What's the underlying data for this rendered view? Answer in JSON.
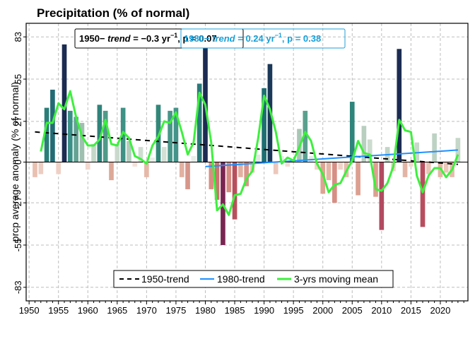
{
  "chart_data": {
    "type": "bar",
    "title": "Precipitation  (% of normal)",
    "ylabel": "prcp average anomaly (% of normal)",
    "xlabel": "",
    "xlim": [
      1949.5,
      2024.7
    ],
    "ylim": [
      -92,
      92
    ],
    "xticks": [
      1950,
      1955,
      1960,
      1965,
      1970,
      1975,
      1980,
      1985,
      1990,
      1995,
      2000,
      2005,
      2010,
      2015,
      2020
    ],
    "xtick_labels": [
      "1950",
      "1955",
      "1960",
      "1965",
      "1970",
      "1975",
      "1980",
      "1985",
      "1990",
      "1995",
      "2000",
      "2005",
      "2010",
      "2015",
      "2020"
    ],
    "yticks": [
      -83,
      -55,
      -27,
      0,
      27,
      55,
      83
    ],
    "ytick_labels": [
      "-83",
      "-55",
      "-27",
      "0",
      "27",
      "55",
      "83"
    ],
    "grid": true,
    "years": [
      1951,
      1952,
      1953,
      1954,
      1955,
      1956,
      1957,
      1958,
      1959,
      1960,
      1961,
      1962,
      1963,
      1964,
      1965,
      1966,
      1967,
      1968,
      1969,
      1970,
      1971,
      1972,
      1973,
      1974,
      1975,
      1976,
      1977,
      1978,
      1979,
      1980,
      1981,
      1982,
      1983,
      1984,
      1985,
      1986,
      1987,
      1988,
      1989,
      1990,
      1991,
      1992,
      1993,
      1994,
      1995,
      1996,
      1997,
      1998,
      1999,
      2000,
      2001,
      2002,
      2003,
      2004,
      2005,
      2006,
      2007,
      2008,
      2009,
      2010,
      2011,
      2012,
      2013,
      2014,
      2015,
      2016,
      2017,
      2018,
      2019,
      2020,
      2021,
      2022,
      2023
    ],
    "values": [
      -10,
      -8,
      36,
      48,
      -8,
      78,
      34,
      30,
      26,
      -5,
      12,
      38,
      34,
      -12,
      12,
      36,
      14,
      -3,
      10,
      -10,
      3,
      38,
      10,
      34,
      36,
      -10,
      -18,
      4,
      52,
      82,
      -18,
      -25,
      -55,
      -20,
      -38,
      -10,
      -16,
      -7,
      5,
      49,
      65,
      -8,
      4,
      -3,
      2,
      22,
      34,
      4,
      -5,
      -21,
      -12,
      -27,
      -5,
      -10,
      40,
      -22,
      24,
      15,
      -23,
      -45,
      10,
      -6,
      75,
      -10,
      -3,
      13,
      -43,
      -8,
      19,
      -10,
      -7,
      -10,
      16
    ],
    "bar_colors": [
      "#e9bfb0",
      "#eccdc1",
      "#2b7d78",
      "#236b74",
      "#efd0c5",
      "#1b2b52",
      "#3a8f86",
      "#64a394",
      "#9fc0b0",
      "#f2d7cd",
      "#c4d7c8",
      "#2f837b",
      "#4f9a8a",
      "#dca898",
      "#c9dacd",
      "#3d9185",
      "#b3ccbd",
      "#f5e0d8",
      "#cfddd1",
      "#e5b8a8",
      "#e8eee8",
      "#338779",
      "#d3e0d6",
      "#47968a",
      "#44948a",
      "#e2b1a1",
      "#d6968a",
      "#e8eee8",
      "#2a7a7a",
      "#1b2b52",
      "#d98e84",
      "#c97570",
      "#7a2552",
      "#d68c82",
      "#b7505c",
      "#e2b1a1",
      "#d8948a",
      "#eec9bc",
      "#e0e8e1",
      "#1e6e72",
      "#1c3858",
      "#ecc8bb",
      "#e5ece6",
      "#f3dcd3",
      "#eaefe9",
      "#a8c6b5",
      "#5aa08f",
      "#e5ece6",
      "#f0d2c7",
      "#dea493",
      "#e4b6a6",
      "#d68e85",
      "#f0d2c7",
      "#e6bbac",
      "#2e857c",
      "#dc9f90",
      "#b8cfc0",
      "#ccdbce",
      "#de9f91",
      "#b24a60",
      "#c2d5c7",
      "#f0d2c7",
      "#1b2b52",
      "#e3b4a5",
      "#f2d8ce",
      "#c7d8ca",
      "#b74d5e",
      "#eac4b6",
      "#bdd2c3",
      "#e4b6a6",
      "#ebc7ba",
      "#e6bbac",
      "#c4d7c8"
    ],
    "series": [
      {
        "name": "3-yrs moving mean",
        "color": "#3df03d",
        "x": [
          1952,
          1953,
          1954,
          1955,
          1956,
          1957,
          1958,
          1959,
          1960,
          1961,
          1962,
          1963,
          1964,
          1965,
          1966,
          1967,
          1968,
          1969,
          1970,
          1971,
          1972,
          1973,
          1974,
          1975,
          1976,
          1977,
          1978,
          1979,
          1980,
          1981,
          1982,
          1983,
          1984,
          1985,
          1986,
          1987,
          1988,
          1989,
          1990,
          1991,
          1992,
          1993,
          1994,
          1995,
          1996,
          1997,
          1998,
          1999,
          2000,
          2001,
          2002,
          2003,
          2004,
          2005,
          2006,
          2007,
          2008,
          2009,
          2010,
          2011,
          2012,
          2013,
          2014,
          2015,
          2016,
          2017,
          2018,
          2019,
          2020,
          2021,
          2022,
          2023
        ],
        "y": [
          7,
          26,
          26,
          39,
          35,
          47,
          30,
          17,
          11,
          11,
          15,
          28,
          12,
          11,
          20,
          16,
          4,
          2,
          -1,
          11,
          17,
          27,
          26,
          33,
          20,
          5,
          13,
          46,
          38,
          13,
          -32,
          -28,
          -35,
          -22,
          -21,
          -11,
          -6,
          16,
          44,
          35,
          20,
          -1,
          3,
          1,
          10,
          20,
          14,
          -1,
          -8,
          -20,
          -15,
          -14,
          -6,
          1,
          14,
          6,
          5,
          -18,
          -19,
          -14,
          -3,
          28,
          21,
          20,
          -9,
          -20,
          -9,
          -4,
          -4,
          -10,
          -5,
          5
        ]
      },
      {
        "name": "1950-trend",
        "color": "#000000",
        "style": "dashed",
        "x": [
          1951,
          2023
        ],
        "y": [
          20,
          -1.5
        ]
      },
      {
        "name": "1980-trend",
        "color": "#1e90ff",
        "x": [
          1980,
          2023
        ],
        "y": [
          -3,
          8
        ]
      }
    ],
    "legend": {
      "placement": "bottom-center",
      "entries": [
        "1950-trend",
        "1980-trend",
        "3-yrs moving mean"
      ]
    },
    "annotations": {
      "a1950_prefix": "1950−  ",
      "a1950_trend": "trend",
      "a1950_value": " = −0.3 yr",
      "a1950_sup": "−1",
      "a1950_p": ",  p = 0.07",
      "a1980_prefix": "1980− ",
      "a1980_trend": "trend",
      "a1980_value": " = 0.24 yr",
      "a1980_sup": "−1",
      "a1980_p": ",  p = 0.38"
    }
  }
}
